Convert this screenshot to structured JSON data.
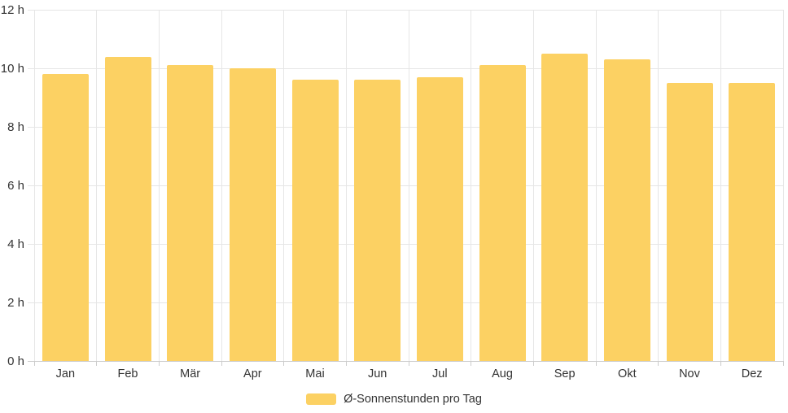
{
  "chart_data": {
    "type": "bar",
    "title": "",
    "categories": [
      "Jan",
      "Feb",
      "Mär",
      "Apr",
      "Mai",
      "Jun",
      "Jul",
      "Aug",
      "Sep",
      "Okt",
      "Nov",
      "Dez"
    ],
    "series": [
      {
        "name": "Ø-Sonnenstunden pro Tag",
        "values": [
          9.8,
          10.4,
          10.1,
          10.0,
          9.6,
          9.6,
          9.7,
          10.1,
          10.5,
          10.3,
          9.5,
          9.5
        ]
      }
    ],
    "xlabel": "",
    "ylabel": "",
    "ylim": [
      0,
      12
    ],
    "ytick_step": 2,
    "ytick_labels": [
      "0 h",
      "2 h",
      "4 h",
      "6 h",
      "8 h",
      "10 h",
      "12 h"
    ],
    "grid": true,
    "legend_position": "bottom-center"
  },
  "legend": {
    "label": "Ø-Sonnenstunden pro Tag"
  },
  "colors": {
    "bar": "#FCD163",
    "grid": "#E6E6E6",
    "axis": "#CCCCCC",
    "text": "#333333",
    "background": "#FFFFFF"
  }
}
